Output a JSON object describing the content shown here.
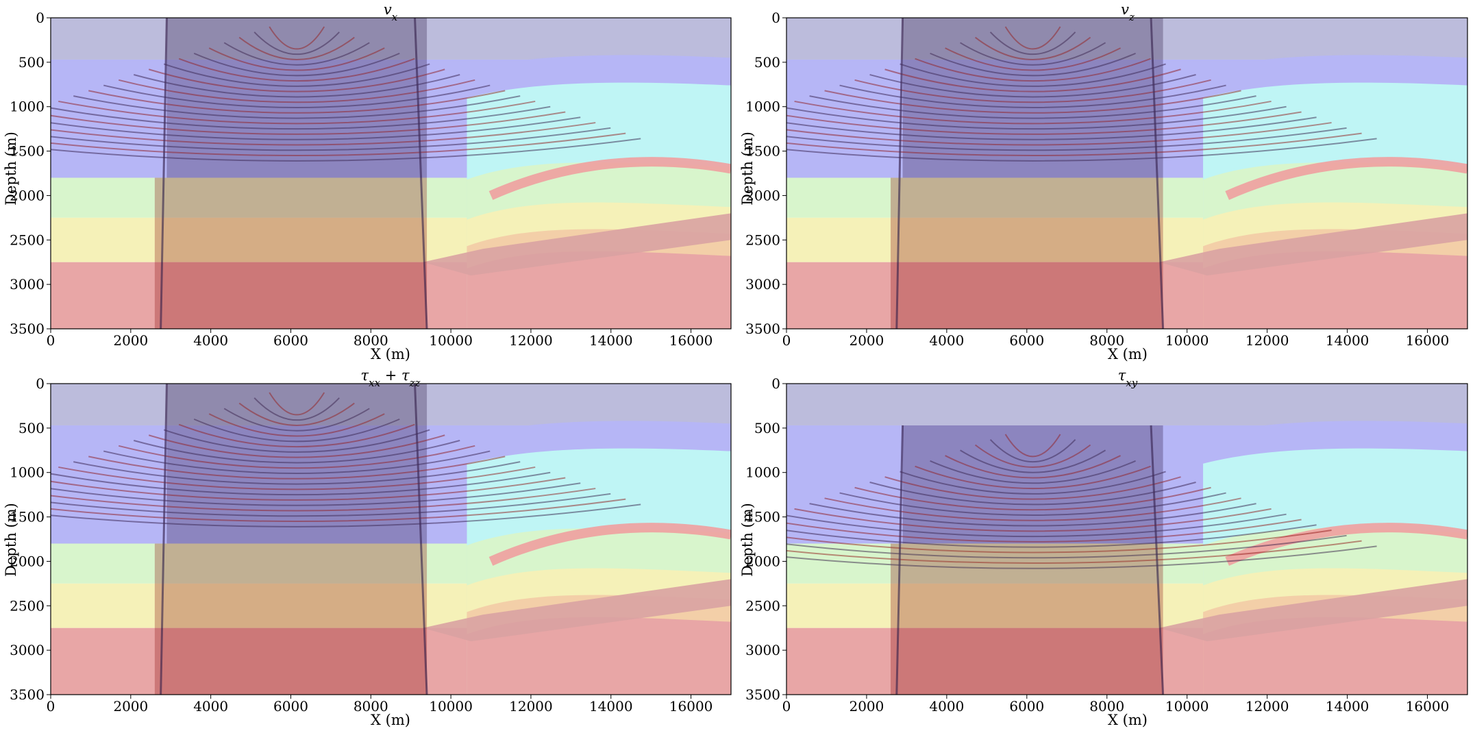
{
  "figure": {
    "background_color": "#ffffff",
    "palette": {
      "water": "#bcbcdc",
      "layer_blue": "#b6b6f6",
      "layer_cyan": "#bff5f5",
      "layer_green": "#d8f5cc",
      "layer_yellow": "#f5f1b8",
      "layer_orange": "#f3cfa8",
      "layer_red": "#e8a6a6",
      "wave_dark": "#2b1440",
      "wave_red": "#8c0f0f"
    }
  },
  "chart_data": [
    {
      "type": "heatmap",
      "title": "v_x",
      "title_main": "v",
      "title_sub": "x",
      "xlabel": "X (m)",
      "ylabel": "Depth (m)",
      "xlim": [
        0,
        17000
      ],
      "ylim": [
        3500,
        0
      ],
      "xticks": [
        0,
        2000,
        4000,
        6000,
        8000,
        10000,
        12000,
        14000,
        16000
      ],
      "yticks": [
        0,
        500,
        1000,
        1500,
        2000,
        2500,
        3000,
        3500
      ],
      "grid": false,
      "wavefield_x_range": [
        2900,
        9400
      ],
      "wavefield_depth_top": 0
    },
    {
      "type": "heatmap",
      "title": "v_z",
      "title_main": "v",
      "title_sub": "z",
      "xlabel": "X (m)",
      "ylabel": "Depth (m)",
      "xlim": [
        0,
        17000
      ],
      "ylim": [
        3500,
        0
      ],
      "xticks": [
        0,
        2000,
        4000,
        6000,
        8000,
        10000,
        12000,
        14000,
        16000
      ],
      "yticks": [
        0,
        500,
        1000,
        1500,
        2000,
        2500,
        3000,
        3500
      ],
      "grid": false,
      "wavefield_x_range": [
        2900,
        9400
      ],
      "wavefield_depth_top": 0
    },
    {
      "type": "heatmap",
      "title": "τ_xx + τ_zz",
      "title_main": "τ",
      "title_sub": "xx",
      "title_plus": " + ",
      "title_main2": "τ",
      "title_sub2": "zz",
      "xlabel": "X (m)",
      "ylabel": "Depth (m)",
      "xlim": [
        0,
        17000
      ],
      "ylim": [
        3500,
        0
      ],
      "xticks": [
        0,
        2000,
        4000,
        6000,
        8000,
        10000,
        12000,
        14000,
        16000
      ],
      "yticks": [
        0,
        500,
        1000,
        1500,
        2000,
        2500,
        3000,
        3500
      ],
      "grid": false,
      "wavefield_x_range": [
        2900,
        9400
      ],
      "wavefield_depth_top": 0
    },
    {
      "type": "heatmap",
      "title": "τ_xy",
      "title_main": "τ",
      "title_sub": "xy",
      "xlabel": "X (m)",
      "ylabel": "Depth (m)",
      "xlim": [
        0,
        17000
      ],
      "ylim": [
        3500,
        0
      ],
      "xticks": [
        0,
        2000,
        4000,
        6000,
        8000,
        10000,
        12000,
        14000,
        16000
      ],
      "yticks": [
        0,
        500,
        1000,
        1500,
        2000,
        2500,
        3000,
        3500
      ],
      "grid": false,
      "wavefield_x_range": [
        2900,
        9400
      ],
      "wavefield_depth_top": 470
    }
  ]
}
